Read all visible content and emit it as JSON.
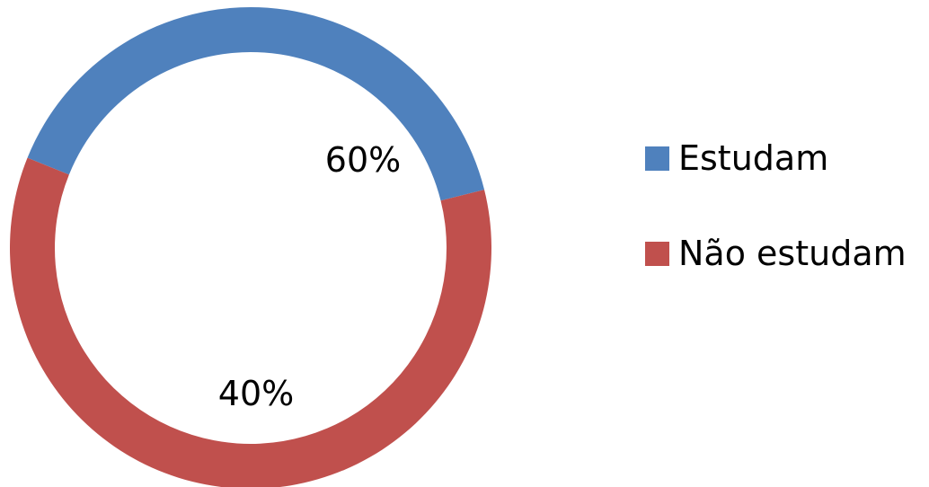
{
  "chart_data": {
    "type": "pie",
    "variant": "doughnut",
    "title": "",
    "categories": [
      "Estudam",
      "Não estudam"
    ],
    "values": [
      40,
      60
    ],
    "data_labels": [
      "40%",
      "60%"
    ],
    "colors": [
      "#4F81BD",
      "#C0504D"
    ],
    "legend_placement": "right",
    "start_angle_deg": 158,
    "direction": "counterclockwise"
  }
}
